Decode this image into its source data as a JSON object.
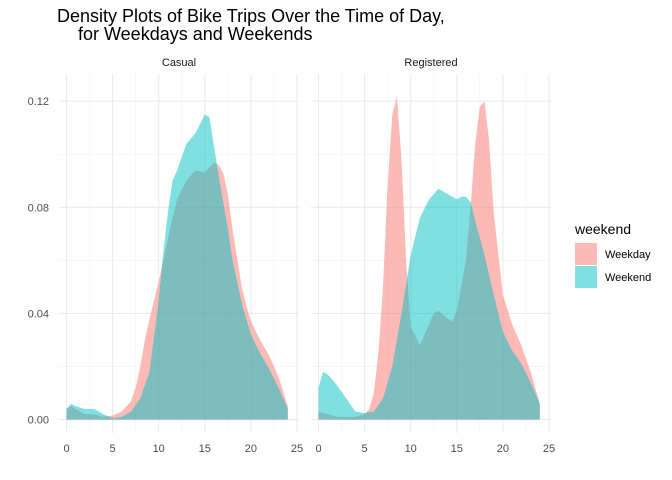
{
  "chart_data": {
    "type": "area",
    "title": "Density Plots of Bike Trips Over the Time of Day,",
    "subtitle": "for Weekdays and Weekends",
    "xlabel": "",
    "ylabel": "",
    "xlim": [
      0,
      25
    ],
    "ylim": [
      0,
      0.125
    ],
    "x_ticks": [
      0,
      5,
      10,
      15,
      20,
      25
    ],
    "y_ticks": [
      0.0,
      0.04,
      0.08,
      0.12
    ],
    "y_tick_labels": [
      "0.00",
      "0.04",
      "0.08",
      "0.12"
    ],
    "grid": true,
    "legend": {
      "title": "weekend",
      "position": "right",
      "entries": [
        {
          "label": "Weekday",
          "color": "#F8766D"
        },
        {
          "label": "Weekend",
          "color": "#00BFC4"
        }
      ]
    },
    "facets": [
      {
        "label": "Casual",
        "series": [
          {
            "name": "Weekday",
            "color": "#F8766D",
            "x": [
              0,
              0.5,
              1,
              2,
              3,
              4,
              5,
              6,
              7,
              7.5,
              8,
              8.5,
              9,
              10,
              10.5,
              11,
              11.5,
              12,
              13,
              14,
              15,
              16,
              16.5,
              17,
              17.5,
              18,
              19,
              19.5,
              20,
              21,
              22,
              23,
              24
            ],
            "y": [
              0.004,
              0.005,
              0.004,
              0.002,
              0.002,
              0.001,
              0.0015,
              0.003,
              0.007,
              0.012,
              0.02,
              0.03,
              0.038,
              0.052,
              0.06,
              0.068,
              0.076,
              0.083,
              0.09,
              0.094,
              0.093,
              0.097,
              0.096,
              0.093,
              0.085,
              0.072,
              0.05,
              0.043,
              0.037,
              0.03,
              0.024,
              0.016,
              0.005
            ]
          },
          {
            "name": "Weekend",
            "color": "#00BFC4",
            "x": [
              0,
              0.5,
              1,
              2,
              3,
              4,
              5,
              6,
              7,
              8,
              9,
              10,
              10.5,
              11,
              11.5,
              12,
              13,
              14,
              15,
              15.5,
              16,
              16.5,
              17,
              17.5,
              18,
              19,
              20,
              21,
              22,
              23,
              24
            ],
            "y": [
              0.004,
              0.006,
              0.005,
              0.004,
              0.004,
              0.002,
              0.0005,
              0.001,
              0.003,
              0.008,
              0.018,
              0.045,
              0.063,
              0.078,
              0.09,
              0.094,
              0.104,
              0.108,
              0.115,
              0.114,
              0.103,
              0.092,
              0.082,
              0.072,
              0.06,
              0.044,
              0.032,
              0.025,
              0.019,
              0.012,
              0.004
            ]
          }
        ]
      },
      {
        "label": "Registered",
        "series": [
          {
            "name": "Weekday",
            "color": "#F8766D",
            "x": [
              0,
              1,
              2,
              3,
              4,
              5,
              5.5,
              6,
              6.5,
              7,
              7.5,
              8,
              8.5,
              9,
              9.5,
              10,
              11,
              12,
              12.5,
              13,
              14,
              14.5,
              15,
              16,
              16.5,
              17,
              17.5,
              18,
              18.5,
              19,
              20,
              21,
              22,
              23,
              24
            ],
            "y": [
              0.003,
              0.002,
              0.001,
              0.001,
              0.001,
              0.002,
              0.004,
              0.01,
              0.025,
              0.05,
              0.088,
              0.115,
              0.122,
              0.098,
              0.06,
              0.035,
              0.028,
              0.036,
              0.04,
              0.041,
              0.038,
              0.037,
              0.041,
              0.06,
              0.08,
              0.104,
              0.118,
              0.12,
              0.105,
              0.078,
              0.047,
              0.036,
              0.028,
              0.018,
              0.006
            ]
          },
          {
            "name": "Weekend",
            "color": "#00BFC4",
            "x": [
              0,
              0.5,
              1,
              2,
              3,
              4,
              5,
              6,
              7,
              8,
              9,
              10,
              11,
              12,
              13,
              14,
              15,
              15.5,
              16,
              16.5,
              17,
              18,
              19,
              20,
              21,
              22,
              23,
              24
            ],
            "y": [
              0.012,
              0.018,
              0.017,
              0.013,
              0.008,
              0.003,
              0.0025,
              0.003,
              0.008,
              0.02,
              0.04,
              0.062,
              0.076,
              0.083,
              0.087,
              0.085,
              0.083,
              0.084,
              0.084,
              0.082,
              0.075,
              0.062,
              0.047,
              0.033,
              0.026,
              0.021,
              0.014,
              0.006
            ]
          }
        ]
      }
    ]
  }
}
